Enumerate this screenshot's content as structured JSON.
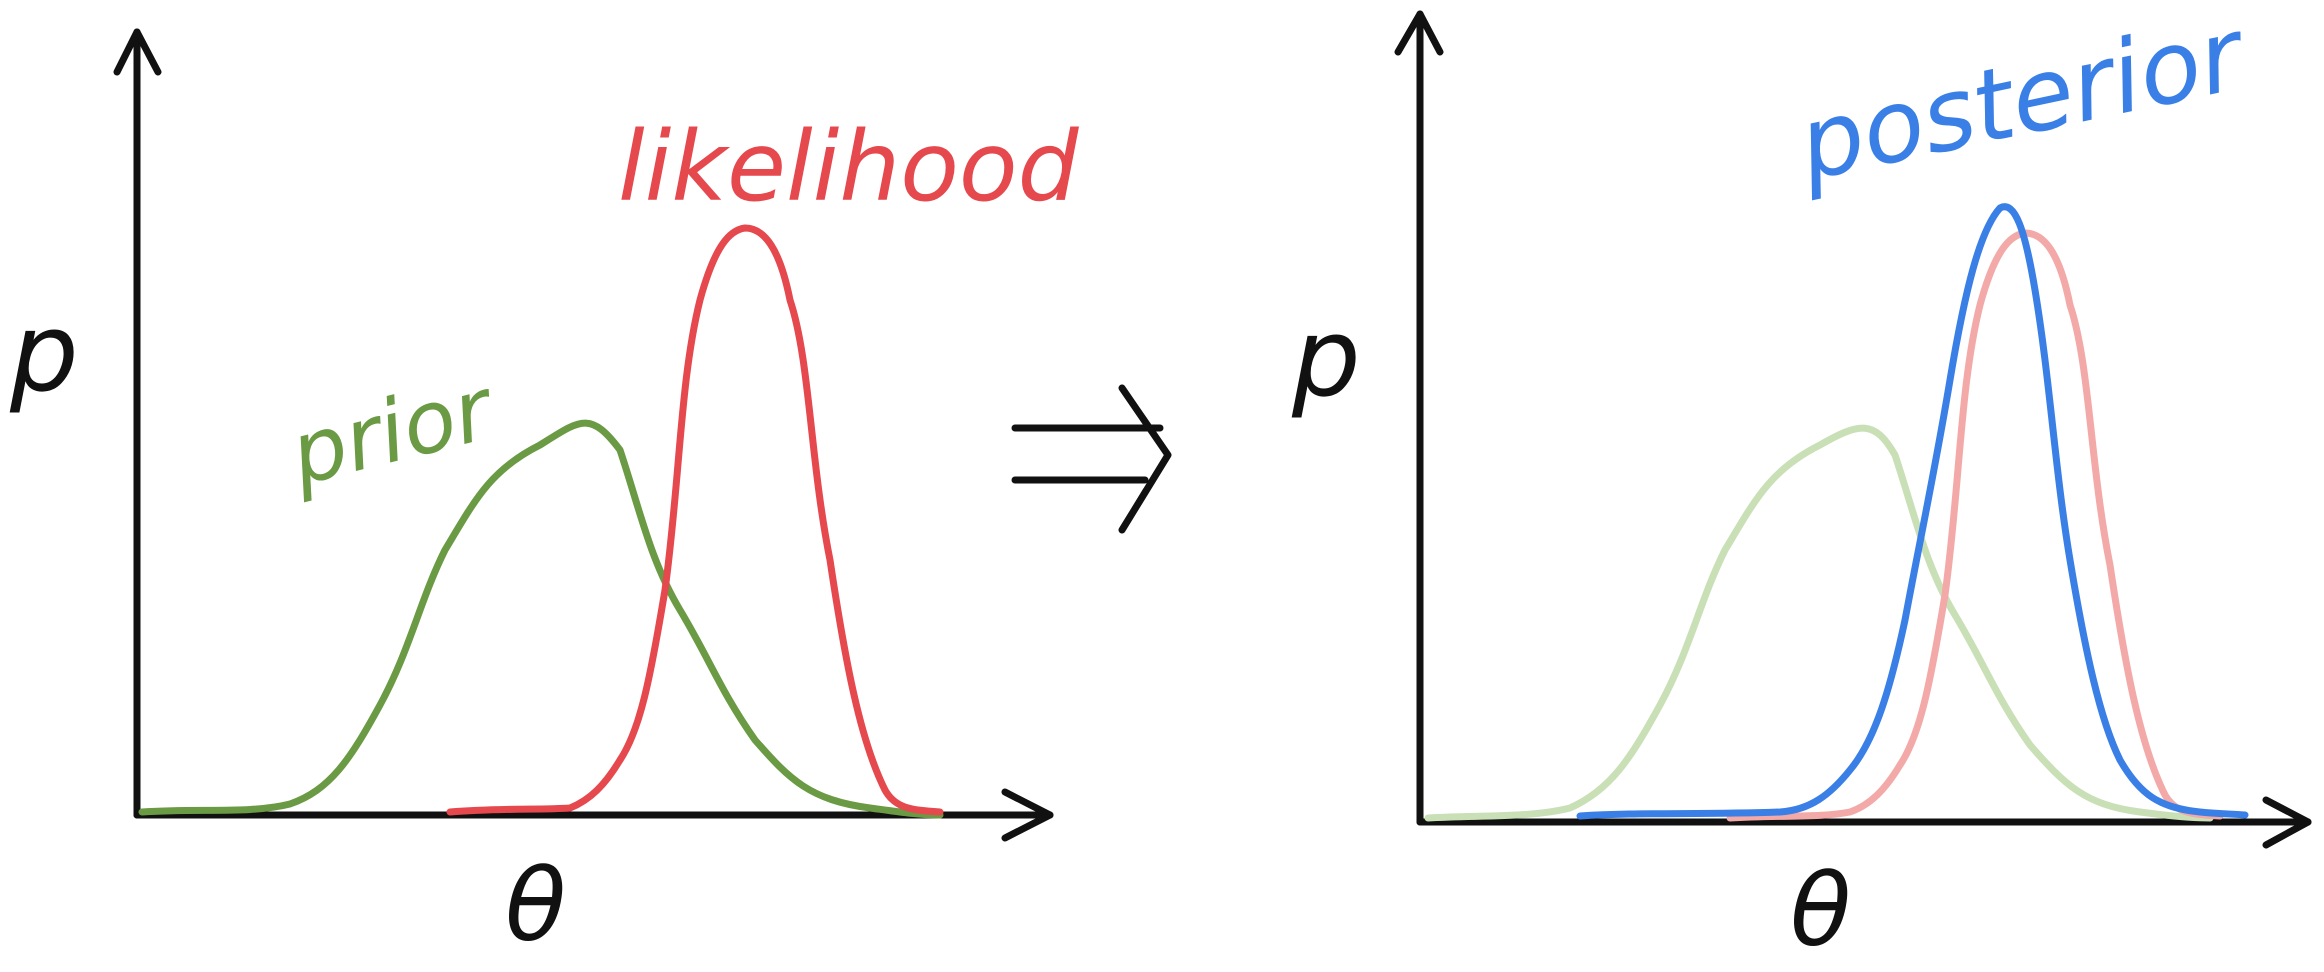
{
  "colors": {
    "ink": "#111111",
    "prior": "#6a9a43",
    "likelihood": "#e5484d",
    "posterior": "#3a7fe6",
    "prior_faded": "#c9e0b6",
    "likelihood_faded": "#f2a9a7"
  },
  "left_panel": {
    "y_axis_label": "p",
    "x_axis_label": "θ",
    "prior_label": "prior",
    "likelihood_label": "likelihood"
  },
  "arrow": {
    "symbol": "implies-arrow"
  },
  "right_panel": {
    "y_axis_label": "p",
    "x_axis_label": "θ",
    "posterior_label": "posterior"
  }
}
